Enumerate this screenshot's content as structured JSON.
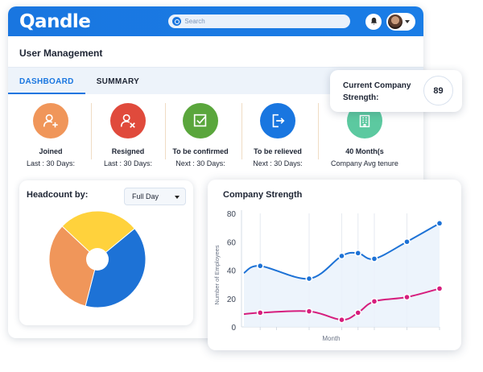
{
  "app": {
    "logo": "Qandle",
    "search_placeholder": "Search",
    "page_title": "User Management",
    "tabs": [
      {
        "label": "DASHBOARD",
        "active": true
      },
      {
        "label": "SUMMARY",
        "active": false
      }
    ]
  },
  "stats": [
    {
      "label": "Joined",
      "sub": "Last : 30 Days:",
      "color": "#f0965a",
      "icon": "user-add-icon"
    },
    {
      "label": "Resigned",
      "sub": "Last : 30 Days:",
      "color": "#e04a3c",
      "icon": "user-remove-icon"
    },
    {
      "label": "To be confirmed",
      "sub": "Next : 30 Days:",
      "color": "#5aa63c",
      "icon": "checkbox-icon"
    },
    {
      "label": "To be relieved",
      "sub": "Next : 30 Days:",
      "color": "#1976e0",
      "icon": "exit-icon"
    },
    {
      "label": "40 Month(s",
      "sub": "Company Avg tenure",
      "color": "#5cc9a0",
      "icon": "building-icon"
    }
  ],
  "headcount": {
    "title": "Headcount by:",
    "filter_value": "Full Day",
    "pie": [
      {
        "value": 40,
        "color": "#1d72d6"
      },
      {
        "value": 33,
        "color": "#f0965a"
      },
      {
        "value": 27,
        "color": "#ffd23c"
      }
    ]
  },
  "current_strength": {
    "label": "Current Company Strength:",
    "value": "89"
  },
  "chart_data": {
    "type": "line",
    "title": "Company Strength",
    "xlabel": "Month",
    "ylabel": "Number of Employees",
    "yticks": [
      "0",
      "20",
      "40",
      "60",
      "80"
    ],
    "ylim": [
      0,
      80
    ],
    "grid": true,
    "series": [
      {
        "color": "#1d72d6",
        "x": [
          0,
          1,
          4,
          6,
          7,
          8,
          10,
          12
        ],
        "values": [
          38,
          43,
          34,
          50,
          52,
          48,
          60,
          73
        ]
      },
      {
        "color": "#d61e7d",
        "x": [
          0,
          1,
          4,
          6,
          7,
          8,
          10,
          12
        ],
        "values": [
          9,
          10,
          11,
          5,
          10,
          18,
          21,
          27
        ]
      }
    ]
  }
}
